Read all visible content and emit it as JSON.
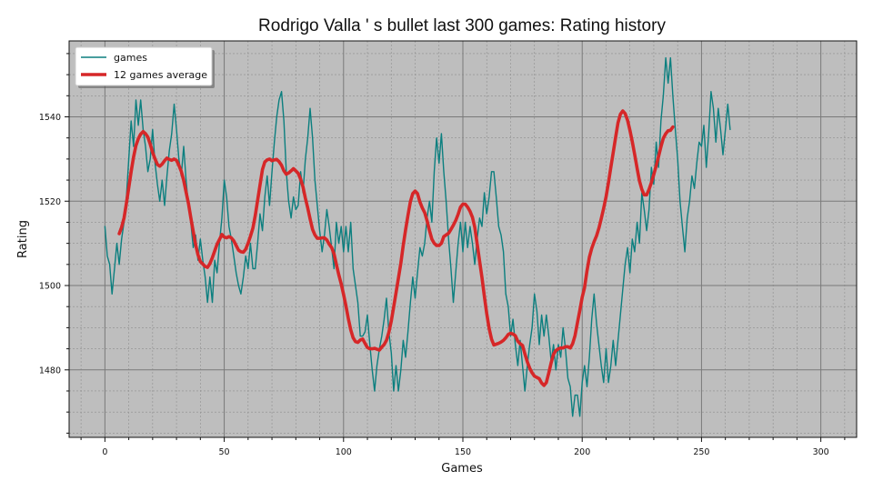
{
  "chart_data": {
    "type": "line",
    "title": "Rodrigo Valla ' s bullet last 300 games: Rating history",
    "xlabel": "Games",
    "ylabel": "Rating",
    "xlim": [
      -15,
      315
    ],
    "ylim": [
      1464,
      1558
    ],
    "xticks": [
      0,
      50,
      100,
      150,
      200,
      250,
      300
    ],
    "yticks": [
      1480,
      1500,
      1520,
      1540
    ],
    "grid": true,
    "legend_position": "top-left",
    "colors": {
      "games": "#0b7f7f",
      "average": "#d62728",
      "background": "#bebebe"
    },
    "series": [
      {
        "name": "games",
        "x_start": 0,
        "values": [
          1514,
          1507,
          1505,
          1498,
          1504,
          1510,
          1505,
          1511,
          1515,
          1521,
          1530,
          1539,
          1533,
          1544,
          1538,
          1544,
          1537,
          1533,
          1527,
          1530,
          1537,
          1529,
          1524,
          1520,
          1525,
          1519,
          1526,
          1532,
          1536,
          1543,
          1537,
          1530,
          1526,
          1533,
          1525,
          1519,
          1515,
          1509,
          1512,
          1506,
          1511,
          1506,
          1502,
          1496,
          1502,
          1496,
          1506,
          1503,
          1510,
          1516,
          1525,
          1521,
          1514,
          1511,
          1507,
          1503,
          1500,
          1498,
          1502,
          1507,
          1504,
          1510,
          1504,
          1504,
          1510,
          1517,
          1513,
          1521,
          1526,
          1519,
          1527,
          1534,
          1540,
          1544,
          1546,
          1539,
          1527,
          1520,
          1516,
          1521,
          1518,
          1519,
          1527,
          1522,
          1530,
          1535,
          1542,
          1535,
          1525,
          1519,
          1513,
          1508,
          1512,
          1518,
          1514,
          1509,
          1504,
          1515,
          1510,
          1514,
          1508,
          1514,
          1508,
          1515,
          1504,
          1500,
          1496,
          1488,
          1488,
          1489,
          1493,
          1486,
          1480,
          1475,
          1481,
          1485,
          1488,
          1492,
          1497,
          1489,
          1484,
          1475,
          1481,
          1475,
          1480,
          1487,
          1483,
          1489,
          1496,
          1502,
          1497,
          1503,
          1509,
          1507,
          1510,
          1516,
          1520,
          1515,
          1527,
          1535,
          1529,
          1536,
          1527,
          1520,
          1511,
          1504,
          1496,
          1503,
          1510,
          1515,
          1508,
          1515,
          1509,
          1514,
          1510,
          1505,
          1511,
          1516,
          1514,
          1522,
          1517,
          1521,
          1527,
          1527,
          1521,
          1514,
          1512,
          1508,
          1498,
          1495,
          1488,
          1492,
          1486,
          1481,
          1487,
          1481,
          1475,
          1481,
          1486,
          1490,
          1498,
          1494,
          1486,
          1493,
          1488,
          1493,
          1488,
          1482,
          1486,
          1480,
          1486,
          1483,
          1490,
          1485,
          1478,
          1476,
          1469,
          1474,
          1474,
          1469,
          1477,
          1481,
          1476,
          1483,
          1492,
          1498,
          1491,
          1486,
          1481,
          1477,
          1485,
          1477,
          1481,
          1487,
          1481,
          1487,
          1493,
          1499,
          1505,
          1509,
          1503,
          1511,
          1508,
          1515,
          1510,
          1522,
          1518,
          1513,
          1518,
          1528,
          1524,
          1534,
          1528,
          1539,
          1545,
          1554,
          1548,
          1554,
          1545,
          1537,
          1530,
          1520,
          1514,
          1508,
          1516,
          1520,
          1526,
          1523,
          1529,
          1534,
          1533,
          1538,
          1528,
          1536,
          1546,
          1542,
          1534,
          1542,
          1537,
          1531,
          1537,
          1543,
          1537
        ]
      },
      {
        "name": "12 games average",
        "x_start": 6,
        "values": [
          1512.3,
          1513.8,
          1516.0,
          1519.5,
          1523.2,
          1527.0,
          1530.5,
          1533.2,
          1534.8,
          1535.9,
          1536.5,
          1536.0,
          1535.2,
          1533.5,
          1531.6,
          1530.0,
          1528.7,
          1528.3,
          1528.8,
          1529.6,
          1530.2,
          1529.9,
          1529.7,
          1530.0,
          1529.7,
          1528.5,
          1527.1,
          1524.9,
          1522.2,
          1519.5,
          1516.1,
          1512.8,
          1509.7,
          1507.3,
          1505.7,
          1505.1,
          1504.5,
          1504.3,
          1505.2,
          1506.6,
          1508.2,
          1509.8,
          1510.9,
          1512.1,
          1511.5,
          1511.3,
          1511.6,
          1511.3,
          1510.6,
          1509.5,
          1508.4,
          1508.0,
          1507.9,
          1508.6,
          1510.0,
          1511.7,
          1513.6,
          1516.6,
          1520.2,
          1523.8,
          1527.5,
          1529.3,
          1529.8,
          1530.0,
          1529.6,
          1529.8,
          1529.9,
          1529.4,
          1528.5,
          1527.2,
          1526.4,
          1526.7,
          1527.2,
          1527.7,
          1527.2,
          1526.6,
          1525.2,
          1523.4,
          1520.7,
          1518.4,
          1515.8,
          1513.3,
          1512.0,
          1511.2,
          1511.2,
          1511.3,
          1511.3,
          1510.8,
          1509.8,
          1509.0,
          1507.5,
          1505.0,
          1502.6,
          1500.4,
          1497.9,
          1495.2,
          1492.2,
          1489.5,
          1487.6,
          1486.7,
          1486.5,
          1487.1,
          1487.3,
          1486.3,
          1485.3,
          1485.0,
          1485.0,
          1485.1,
          1484.9,
          1484.7,
          1485.4,
          1486.0,
          1487.0,
          1488.9,
          1491.6,
          1494.9,
          1498.3,
          1501.7,
          1505.3,
          1509.5,
          1513.2,
          1516.6,
          1519.9,
          1521.8,
          1522.4,
          1521.8,
          1519.8,
          1518.4,
          1517.3,
          1515.4,
          1513.0,
          1511.0,
          1510.0,
          1509.5,
          1509.5,
          1510.0,
          1511.6,
          1512.0,
          1512.4,
          1513.3,
          1514.3,
          1515.4,
          1516.9,
          1518.6,
          1519.3,
          1519.3,
          1518.6,
          1517.6,
          1516.2,
          1513.8,
          1509.9,
          1505.8,
          1501.9,
          1497.5,
          1493.4,
          1489.8,
          1487.3,
          1485.9,
          1486.1,
          1486.3,
          1486.6,
          1487.0,
          1487.6,
          1488.4,
          1488.7,
          1488.5,
          1488.1,
          1486.8,
          1486.2,
          1485.8,
          1483.8,
          1481.9,
          1480.4,
          1479.3,
          1478.5,
          1478.2,
          1477.9,
          1476.9,
          1476.3,
          1477.0,
          1479.3,
          1481.7,
          1483.7,
          1484.6,
          1485.0,
          1485.2,
          1485.2,
          1485.5,
          1485.5,
          1485.2,
          1486.2,
          1488.1,
          1491.2,
          1494.1,
          1497.2,
          1499.5,
          1503.5,
          1506.7,
          1508.8,
          1510.4,
          1511.8,
          1513.6,
          1515.9,
          1518.3,
          1521.1,
          1524.4,
          1528.0,
          1531.5,
          1535.2,
          1538.6,
          1540.6,
          1541.4,
          1540.8,
          1539.2,
          1536.8,
          1534.1,
          1531.1,
          1527.8,
          1524.8,
          1522.8,
          1521.5,
          1521.5,
          1522.8,
          1524.4,
          1526.3,
          1528.4,
          1530.6,
          1532.9,
          1534.9,
          1536.0,
          1536.7,
          1536.8,
          1537.6
        ]
      }
    ]
  },
  "legend": {
    "items": [
      {
        "label": "games"
      },
      {
        "label": "12 games average"
      }
    ]
  }
}
